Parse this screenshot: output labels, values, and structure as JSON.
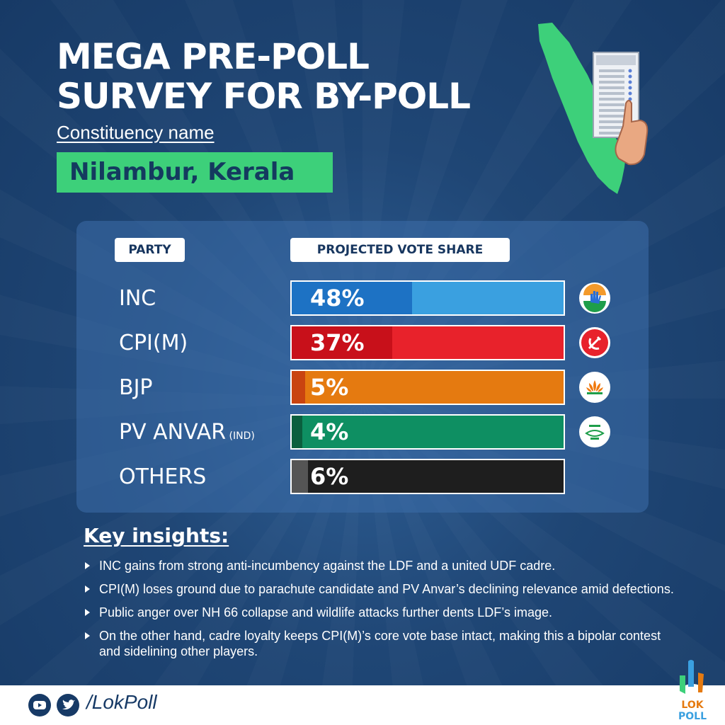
{
  "title_line1": "MEGA PRE-POLL",
  "title_line2": "SURVEY FOR BY-POLL",
  "constituency_label": "Constituency name",
  "constituency_name": "Nilambur, Kerala",
  "colors": {
    "accent_green": "#3dd07a",
    "background": "#1f4675"
  },
  "chart_data": {
    "type": "bar",
    "orientation": "horizontal",
    "xlabel": "PROJECTED VOTE SHARE",
    "ylabel": "PARTY",
    "xlim": [
      0,
      100
    ],
    "categories": [
      "INC",
      "CPI(M)",
      "BJP",
      "PV ANVAR",
      "OTHERS"
    ],
    "category_suffixes": [
      "",
      "",
      "",
      "(IND)",
      ""
    ],
    "values": [
      48,
      37,
      5,
      4,
      6
    ],
    "value_labels": [
      "48%",
      "37%",
      "5%",
      "4%",
      "6%"
    ],
    "bar_colors": [
      "#3aa0e0",
      "#e8222b",
      "#e57a10",
      "#0e8f62",
      "#1e1e1e"
    ],
    "fill_colors": [
      "#1d72c4",
      "#c8101a",
      "#c94410",
      "#0a5f3e",
      "#555555"
    ],
    "party_icons": [
      "inc-hand-icon",
      "cpim-hammer-sickle-icon",
      "bjp-lotus-icon",
      "pv-anvar-symbol-icon",
      ""
    ]
  },
  "insights_title": "Key insights:",
  "insights": [
    "INC gains from strong anti-incumbency against the LDF and a united UDF cadre.",
    "CPI(M) loses ground due to parachute candidate and PV Anvar’s declining relevance amid defections.",
    "Public anger over NH 66 collapse and wildlife attacks further dents LDF’s image.",
    "On the other hand, cadre loyalty keeps CPI(M)’s core vote base intact, making this a bipolar contest and sidelining other players."
  ],
  "footer_handle": "/LokPoll",
  "brand_logo_text": [
    "LOK",
    "POLL"
  ],
  "social_icons": [
    "youtube-icon",
    "twitter-icon"
  ]
}
